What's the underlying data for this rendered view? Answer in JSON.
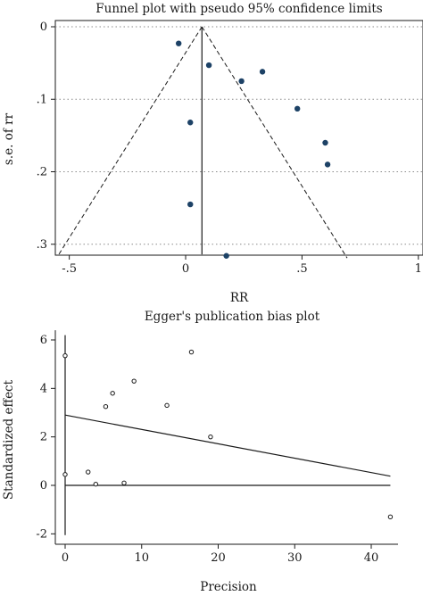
{
  "chart_data": [
    {
      "type": "scatter",
      "title": "Funnel plot with pseudo 95% confidence limits",
      "xlabel": "RR",
      "ylabel": "s.e. of rr",
      "xlim": [
        -0.56,
        1.02
      ],
      "ylim": [
        0,
        0.32
      ],
      "y_reversed": true,
      "xticks": [
        -0.5,
        0,
        0.5,
        1
      ],
      "xtick_labels": [
        "-.5",
        "0",
        ".5",
        "1"
      ],
      "yticks": [
        0,
        0.1,
        0.2,
        0.3
      ],
      "ytick_labels": [
        "0",
        ".1",
        ".2",
        ".3"
      ],
      "grid": "horizontal dotted",
      "pooled_estimate": 0.07,
      "ci_lines": {
        "apex": [
          0.07,
          0
        ],
        "left_end": [
          -0.545,
          0.314
        ],
        "right_end": [
          0.694,
          0.319
        ]
      },
      "series": [
        {
          "x": [
            -0.03,
            0.1,
            0.24,
            0.33,
            0.48,
            0.02,
            0.6,
            0.61,
            0.02,
            0.175
          ],
          "y": [
            0.023,
            0.053,
            0.075,
            0.062,
            0.113,
            0.132,
            0.16,
            0.19,
            0.245,
            0.316
          ]
        }
      ]
    },
    {
      "type": "scatter",
      "title": "Egger's publication bias plot",
      "xlabel": "Precision",
      "ylabel": "Standardized effect",
      "xlim": [
        -0.8,
        43.5
      ],
      "ylim": [
        -2.35,
        6.4
      ],
      "xticks": [
        0,
        10,
        20,
        30,
        40
      ],
      "xtick_labels": [
        "0",
        "10",
        "20",
        "30",
        "40"
      ],
      "yticks": [
        -2,
        0,
        2,
        4,
        6
      ],
      "ytick_labels": [
        "-2",
        "0",
        "2",
        "4",
        "6"
      ],
      "regression_line": {
        "x": [
          0,
          42.5
        ],
        "y": [
          2.9,
          0.38
        ]
      },
      "confidence_bar_at_zero": [
        -2.05,
        6.2
      ],
      "series": [
        {
          "x": [
            0,
            0,
            3,
            4,
            5.3,
            6.2,
            7.7,
            9,
            13.3,
            16.5,
            19,
            42.5
          ],
          "y": [
            5.35,
            0.45,
            0.55,
            0.05,
            3.25,
            3.8,
            0.1,
            4.3,
            3.3,
            5.5,
            2,
            -1.3
          ]
        }
      ]
    }
  ]
}
